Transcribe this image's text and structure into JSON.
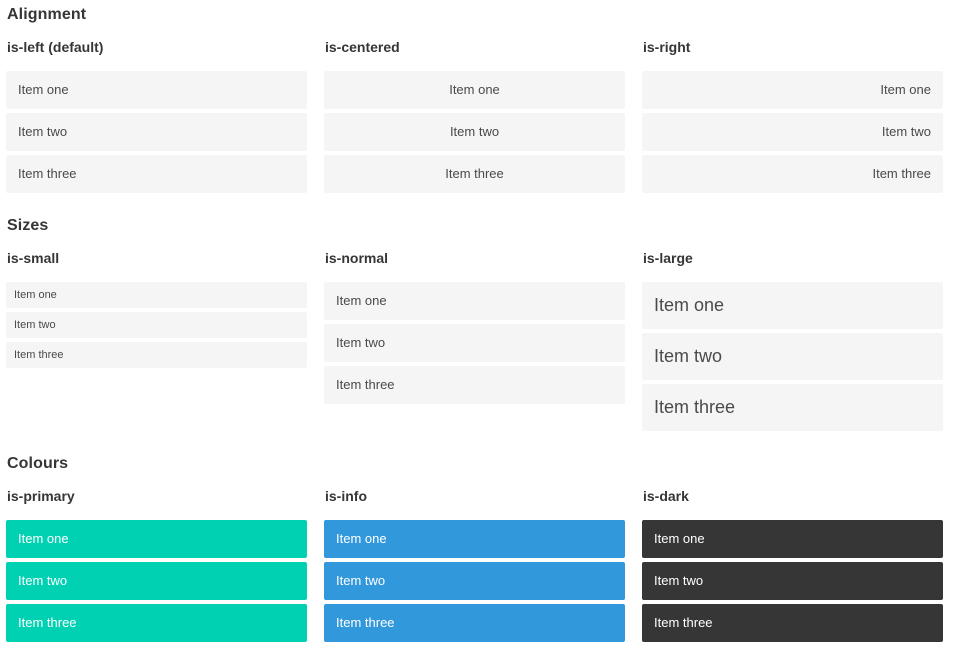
{
  "theme": {
    "primary": "#00d1b2",
    "info": "#3298dc",
    "dark": "#363636",
    "item-bg": "#f5f5f5",
    "item-text": "#4a4a4a",
    "heading": "#363636"
  },
  "sections": [
    {
      "title": "Alignment",
      "columns": [
        {
          "label": "is-left (default)",
          "items": [
            "Item one",
            "Item two",
            "Item three"
          ]
        },
        {
          "label": "is-centered",
          "items": [
            "Item one",
            "Item two",
            "Item three"
          ]
        },
        {
          "label": "is-right",
          "items": [
            "Item one",
            "Item two",
            "Item three"
          ]
        }
      ]
    },
    {
      "title": "Sizes",
      "columns": [
        {
          "label": "is-small",
          "items": [
            "Item one",
            "Item two",
            "Item three"
          ]
        },
        {
          "label": "is-normal",
          "items": [
            "Item one",
            "Item two",
            "Item three"
          ]
        },
        {
          "label": "is-large",
          "items": [
            "Item one",
            "Item two",
            "Item three"
          ]
        }
      ]
    },
    {
      "title": "Colours",
      "columns": [
        {
          "label": "is-primary",
          "items": [
            "Item one",
            "Item two",
            "Item three"
          ]
        },
        {
          "label": "is-info",
          "items": [
            "Item one",
            "Item two",
            "Item three"
          ]
        },
        {
          "label": "is-dark",
          "items": [
            "Item one",
            "Item two",
            "Item three"
          ]
        }
      ]
    }
  ]
}
